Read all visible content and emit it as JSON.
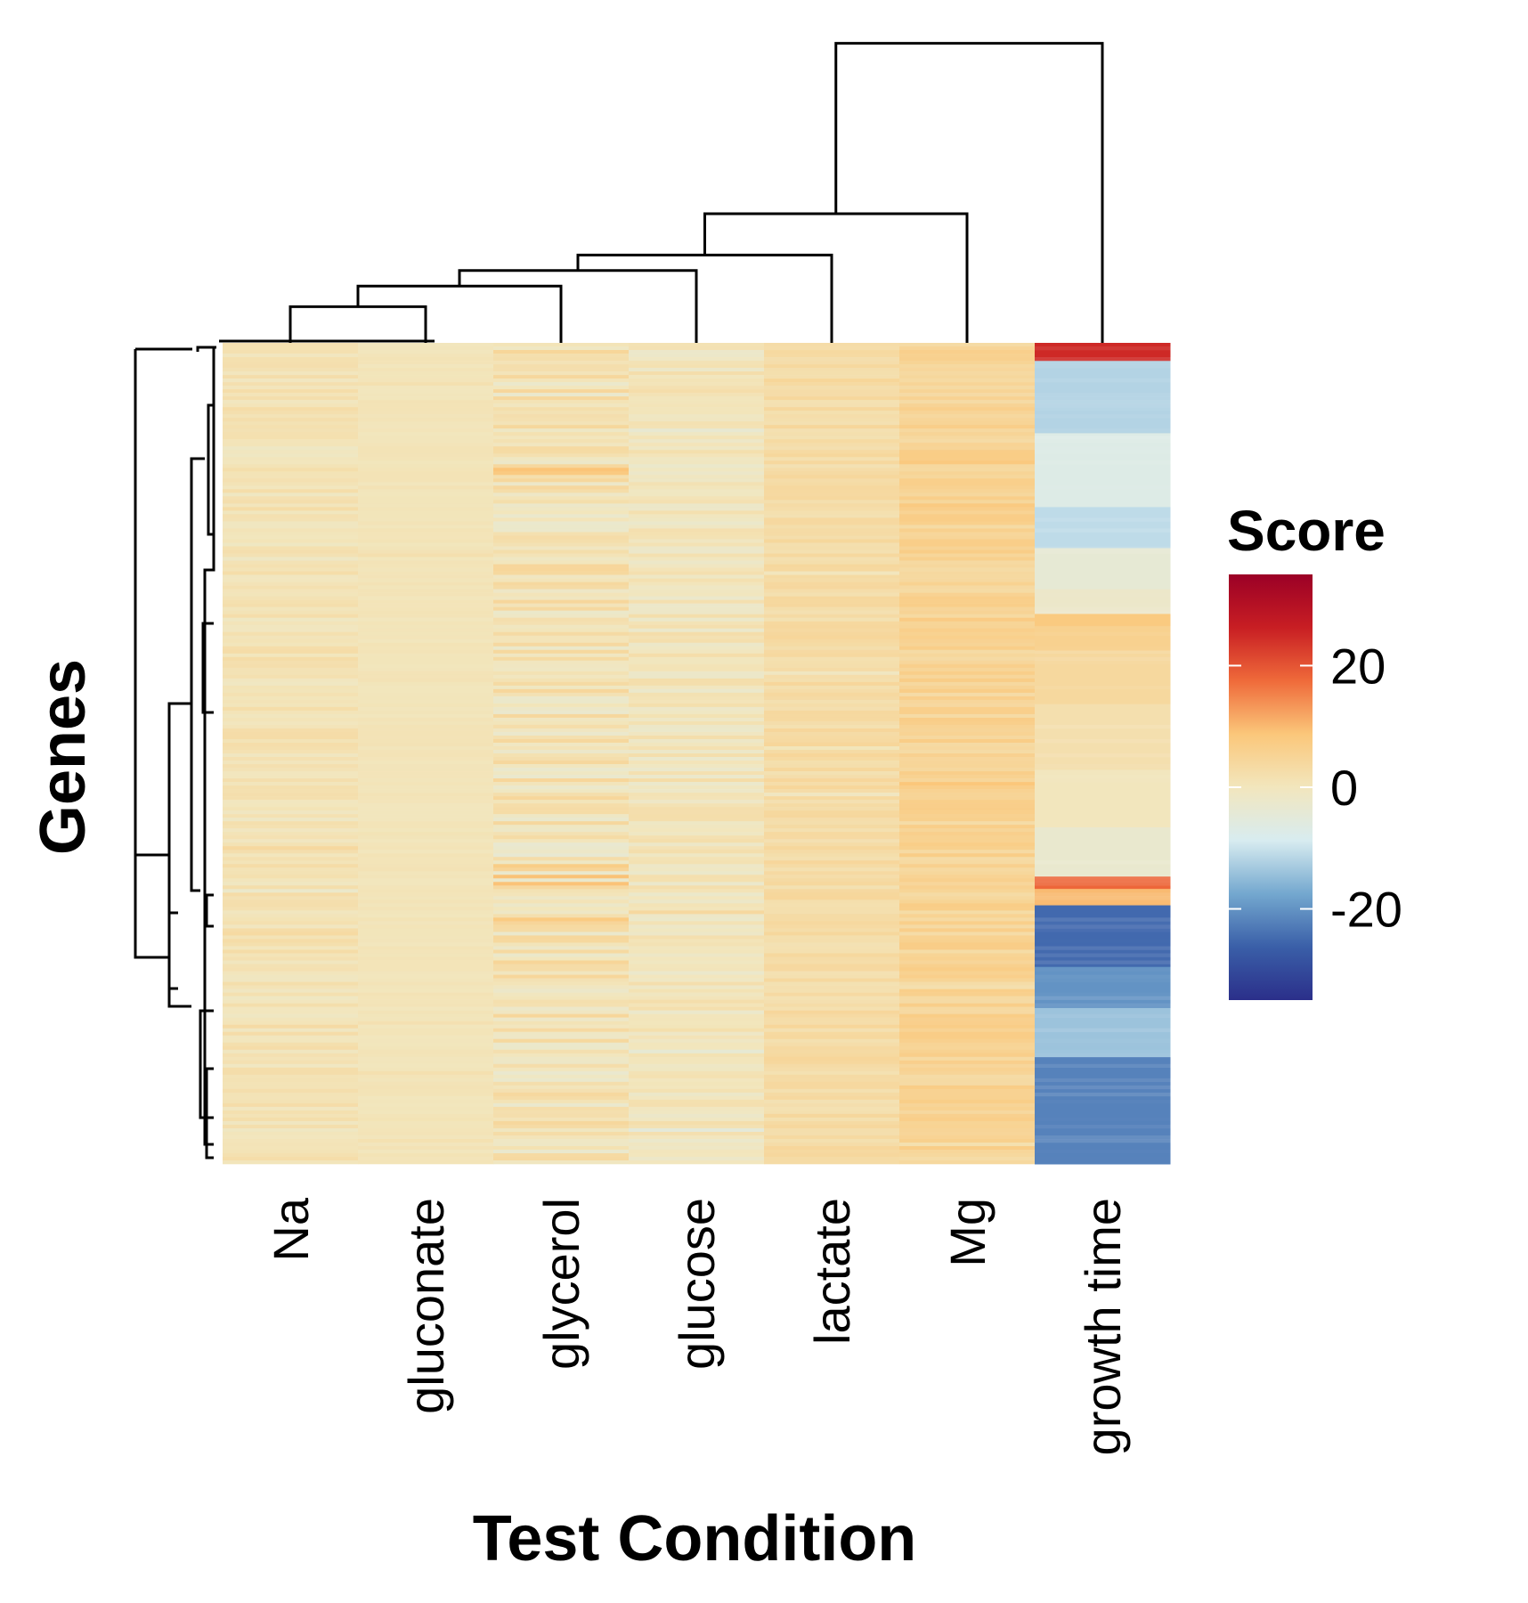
{
  "chart_data": {
    "type": "heatmap",
    "title": "",
    "xlabel": "Test Condition",
    "ylabel": "Genes",
    "categories": [
      "Na",
      "gluconate",
      "glycerol",
      "glucose",
      "lactate",
      "Mg",
      "growth time"
    ],
    "rows_shown": "many genes (unlabeled)",
    "column_dendrogram_merges": [
      {
        "left": "Na",
        "right": "gluconate"
      },
      {
        "left": "Na+gluconate",
        "right": "glycerol"
      },
      {
        "left": "Na+gluconate+glycerol",
        "right": "glucose"
      },
      {
        "left": "Na+gluconate+glycerol+glucose",
        "right": "lactate"
      },
      {
        "left": "Na+gluconate+glycerol+glucose+lactate",
        "right": "Mg"
      },
      {
        "left": "Na+gluconate+glycerol+glucose+lactate+Mg",
        "right": "growth time"
      }
    ],
    "column_summaries": [
      {
        "name": "Na",
        "typical_score": 1,
        "range": [
          -3,
          4
        ]
      },
      {
        "name": "gluconate",
        "typical_score": 0.5,
        "range": [
          0,
          2
        ]
      },
      {
        "name": "glycerol",
        "typical_score": 1,
        "range": [
          -4,
          10
        ]
      },
      {
        "name": "glucose",
        "typical_score": 0,
        "range": [
          -5,
          4
        ]
      },
      {
        "name": "lactate",
        "typical_score": 3,
        "range": [
          -1,
          5
        ]
      },
      {
        "name": "Mg",
        "typical_score": 5,
        "range": [
          1,
          9
        ]
      },
      {
        "name": "growth time",
        "typical_score": -15,
        "range": [
          -30,
          25
        ]
      }
    ],
    "growth_time_segments": [
      {
        "row_start": 0.0,
        "row_end": 0.022,
        "score": 25
      },
      {
        "row_start": 0.022,
        "row_end": 0.11,
        "score": -12
      },
      {
        "row_start": 0.11,
        "row_end": 0.2,
        "score": -7
      },
      {
        "row_start": 0.2,
        "row_end": 0.25,
        "score": -11
      },
      {
        "row_start": 0.25,
        "row_end": 0.3,
        "score": -4
      },
      {
        "row_start": 0.3,
        "row_end": 0.33,
        "score": -2
      },
      {
        "row_start": 0.33,
        "row_end": 0.345,
        "score": 8
      },
      {
        "row_start": 0.345,
        "row_end": 0.375,
        "score": 6
      },
      {
        "row_start": 0.375,
        "row_end": 0.44,
        "score": 4
      },
      {
        "row_start": 0.44,
        "row_end": 0.52,
        "score": 2
      },
      {
        "row_start": 0.52,
        "row_end": 0.59,
        "score": 0
      },
      {
        "row_start": 0.59,
        "row_end": 0.65,
        "score": -3
      },
      {
        "row_start": 0.65,
        "row_end": 0.665,
        "score": 18
      },
      {
        "row_start": 0.665,
        "row_end": 0.685,
        "score": 10
      },
      {
        "row_start": 0.685,
        "row_end": 0.76,
        "score": -25
      },
      {
        "row_start": 0.76,
        "row_end": 0.81,
        "score": -20
      },
      {
        "row_start": 0.81,
        "row_end": 0.87,
        "score": -14
      },
      {
        "row_start": 0.87,
        "row_end": 1.0,
        "score": -22
      }
    ],
    "legend": {
      "title": "Score",
      "ticks": [
        20,
        0,
        -20
      ],
      "range": [
        -35,
        35
      ],
      "placement": "right",
      "colors": [
        "#2b2f8a",
        "#3a5fa8",
        "#74a8cf",
        "#d8ecf0",
        "#f2e6bd",
        "#fbc77a",
        "#ef6a3a",
        "#c81e23",
        "#9b0026"
      ]
    }
  }
}
